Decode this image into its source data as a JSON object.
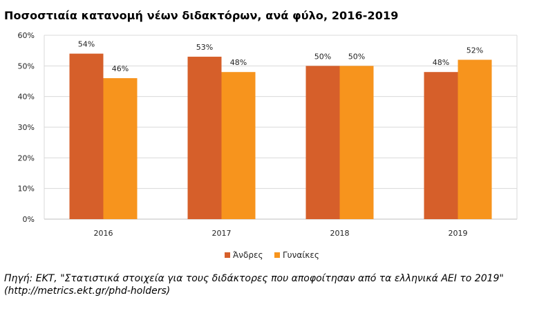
{
  "chart_data": {
    "type": "bar",
    "title": "Ποσοστιαία κατανομή νέων διδακτόρων, ανά φύλο, 2016-2019",
    "categories": [
      "2016",
      "2017",
      "2018",
      "2019"
    ],
    "series": [
      {
        "name": "Άνδρες",
        "color": "#d65f2a",
        "values": [
          54,
          53,
          50,
          48
        ],
        "labels": [
          "54%",
          "53%",
          "50%",
          "48%"
        ]
      },
      {
        "name": "Γυναίκες",
        "color": "#f7941d",
        "values": [
          46,
          48,
          50,
          52
        ],
        "labels": [
          "46%",
          "48%",
          "50%",
          "52%"
        ]
      }
    ],
    "ylim": [
      0,
      60
    ],
    "yticks": [
      "0%",
      "10%",
      "20%",
      "30%",
      "40%",
      "50%",
      "60%"
    ],
    "xlabel": "",
    "ylabel": "",
    "grid": true,
    "legend_position": "bottom"
  },
  "source": {
    "line1": "Πηγή: ΕΚΤ, \"Στατιστικά στοιχεία για τους διδάκτορες που αποφοίτησαν από τα ελληνικά ΑΕΙ το 2019\"",
    "line2": "(http://metrics.ekt.gr/phd-holders)"
  }
}
